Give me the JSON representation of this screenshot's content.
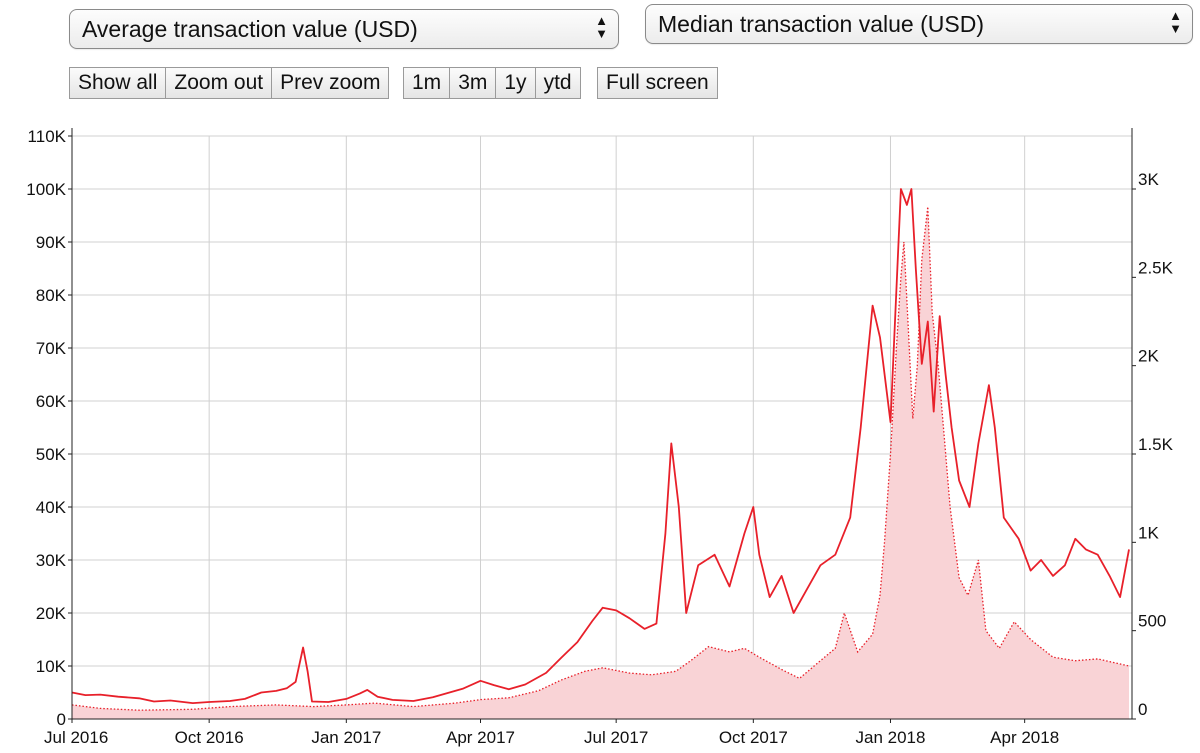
{
  "controls": {
    "left_select": "Average transaction value (USD)",
    "right_select": "Median transaction value (USD)",
    "nav_buttons": [
      "Show all",
      "Zoom out",
      "Prev zoom"
    ],
    "range_buttons": [
      "1m",
      "3m",
      "1y",
      "ytd"
    ],
    "full_screen": "Full screen"
  },
  "chart_data": {
    "type": "line",
    "x_ticks": [
      "Jul 2016",
      "Oct 2016",
      "Jan 2017",
      "Apr 2017",
      "Jul 2017",
      "Oct 2017",
      "Jan 2018",
      "Apr 2018"
    ],
    "y_left_ticks": [
      "0",
      "10K",
      "20K",
      "30K",
      "40K",
      "50K",
      "60K",
      "70K",
      "80K",
      "90K",
      "100K",
      "110K"
    ],
    "y_right_ticks": [
      "0",
      "500",
      "1K",
      "1.5K",
      "2K",
      "2.5K",
      "3K"
    ],
    "ylim_left": [
      0,
      110000
    ],
    "ylim_right": [
      0,
      3000
    ],
    "grid": true,
    "colors": {
      "average": "#e8202a",
      "median_fill": "#f9d3d6",
      "median_line": "#e8202a"
    },
    "series": [
      {
        "axis": "left",
        "style": "solid",
        "points": [
          [
            "2016-07-01",
            5000
          ],
          [
            "2016-07-10",
            4500
          ],
          [
            "2016-07-20",
            4600
          ],
          [
            "2016-08-01",
            4200
          ],
          [
            "2016-08-15",
            3900
          ],
          [
            "2016-08-25",
            3300
          ],
          [
            "2016-09-05",
            3500
          ],
          [
            "2016-09-20",
            3000
          ],
          [
            "2016-10-01",
            3200
          ],
          [
            "2016-10-15",
            3400
          ],
          [
            "2016-10-25",
            3800
          ],
          [
            "2016-11-05",
            5000
          ],
          [
            "2016-11-15",
            5300
          ],
          [
            "2016-11-22",
            5800
          ],
          [
            "2016-11-28",
            7000
          ],
          [
            "2016-12-03",
            13500
          ],
          [
            "2016-12-06",
            9000
          ],
          [
            "2016-12-09",
            3300
          ],
          [
            "2016-12-20",
            3200
          ],
          [
            "2017-01-01",
            3800
          ],
          [
            "2017-01-10",
            4800
          ],
          [
            "2017-01-15",
            5500
          ],
          [
            "2017-01-22",
            4200
          ],
          [
            "2017-02-01",
            3600
          ],
          [
            "2017-02-15",
            3400
          ],
          [
            "2017-02-28",
            4100
          ],
          [
            "2017-03-10",
            4900
          ],
          [
            "2017-03-20",
            5700
          ],
          [
            "2017-04-01",
            7200
          ],
          [
            "2017-04-10",
            6400
          ],
          [
            "2017-04-20",
            5600
          ],
          [
            "2017-05-01",
            6500
          ],
          [
            "2017-05-15",
            8700
          ],
          [
            "2017-05-25",
            11500
          ],
          [
            "2017-06-05",
            14500
          ],
          [
            "2017-06-15",
            18500
          ],
          [
            "2017-06-22",
            21000
          ],
          [
            "2017-07-01",
            20500
          ],
          [
            "2017-07-10",
            19000
          ],
          [
            "2017-07-20",
            17000
          ],
          [
            "2017-07-28",
            18000
          ],
          [
            "2017-08-03",
            35000
          ],
          [
            "2017-08-07",
            52000
          ],
          [
            "2017-08-12",
            40000
          ],
          [
            "2017-08-17",
            20000
          ],
          [
            "2017-08-25",
            29000
          ],
          [
            "2017-09-05",
            31000
          ],
          [
            "2017-09-15",
            25000
          ],
          [
            "2017-09-25",
            35000
          ],
          [
            "2017-10-01",
            40000
          ],
          [
            "2017-10-05",
            31000
          ],
          [
            "2017-10-12",
            23000
          ],
          [
            "2017-10-20",
            27000
          ],
          [
            "2017-10-28",
            20000
          ],
          [
            "2017-11-05",
            24000
          ],
          [
            "2017-11-15",
            29000
          ],
          [
            "2017-11-25",
            31000
          ],
          [
            "2017-12-05",
            38000
          ],
          [
            "2017-12-12",
            55000
          ],
          [
            "2017-12-20",
            78000
          ],
          [
            "2017-12-25",
            72000
          ],
          [
            "2018-01-01",
            56000
          ],
          [
            "2018-01-08",
            100000
          ],
          [
            "2018-01-12",
            97000
          ],
          [
            "2018-01-15",
            100000
          ],
          [
            "2018-01-18",
            85000
          ],
          [
            "2018-01-22",
            67000
          ],
          [
            "2018-01-26",
            75000
          ],
          [
            "2018-01-30",
            58000
          ],
          [
            "2018-02-03",
            76000
          ],
          [
            "2018-02-07",
            65000
          ],
          [
            "2018-02-11",
            55000
          ],
          [
            "2018-02-16",
            45000
          ],
          [
            "2018-02-23",
            40000
          ],
          [
            "2018-03-01",
            52000
          ],
          [
            "2018-03-08",
            63000
          ],
          [
            "2018-03-12",
            55000
          ],
          [
            "2018-03-18",
            38000
          ],
          [
            "2018-03-28",
            34000
          ],
          [
            "2018-04-05",
            28000
          ],
          [
            "2018-04-12",
            30000
          ],
          [
            "2018-04-20",
            27000
          ],
          [
            "2018-04-28",
            29000
          ],
          [
            "2018-05-05",
            34000
          ],
          [
            "2018-05-12",
            32000
          ],
          [
            "2018-05-20",
            31000
          ],
          [
            "2018-05-28",
            27000
          ],
          [
            "2018-06-04",
            23000
          ],
          [
            "2018-06-10",
            32000
          ]
        ]
      },
      {
        "axis": "right",
        "style": "dotted",
        "fill": true,
        "points": [
          [
            "2016-07-01",
            80
          ],
          [
            "2016-07-20",
            60
          ],
          [
            "2016-08-15",
            50
          ],
          [
            "2016-09-20",
            55
          ],
          [
            "2016-10-15",
            70
          ],
          [
            "2016-11-15",
            80
          ],
          [
            "2016-12-10",
            70
          ],
          [
            "2017-01-01",
            80
          ],
          [
            "2017-01-20",
            90
          ],
          [
            "2017-02-15",
            70
          ],
          [
            "2017-03-15",
            90
          ],
          [
            "2017-04-01",
            110
          ],
          [
            "2017-04-20",
            120
          ],
          [
            "2017-05-10",
            160
          ],
          [
            "2017-05-25",
            220
          ],
          [
            "2017-06-10",
            270
          ],
          [
            "2017-06-22",
            290
          ],
          [
            "2017-07-10",
            260
          ],
          [
            "2017-07-25",
            250
          ],
          [
            "2017-08-10",
            270
          ],
          [
            "2017-08-20",
            330
          ],
          [
            "2017-09-01",
            410
          ],
          [
            "2017-09-15",
            380
          ],
          [
            "2017-09-25",
            400
          ],
          [
            "2017-10-05",
            350
          ],
          [
            "2017-10-20",
            280
          ],
          [
            "2017-11-01",
            230
          ],
          [
            "2017-11-15",
            330
          ],
          [
            "2017-11-25",
            400
          ],
          [
            "2017-12-01",
            600
          ],
          [
            "2017-12-10",
            380
          ],
          [
            "2017-12-20",
            480
          ],
          [
            "2017-12-25",
            700
          ],
          [
            "2017-12-28",
            1000
          ],
          [
            "2018-01-01",
            1500
          ],
          [
            "2018-01-05",
            2100
          ],
          [
            "2018-01-08",
            2500
          ],
          [
            "2018-01-10",
            2700
          ],
          [
            "2018-01-13",
            2200
          ],
          [
            "2018-01-16",
            1700
          ],
          [
            "2018-01-19",
            2000
          ],
          [
            "2018-01-22",
            2600
          ],
          [
            "2018-01-26",
            2900
          ],
          [
            "2018-01-29",
            2300
          ],
          [
            "2018-02-02",
            2000
          ],
          [
            "2018-02-06",
            1600
          ],
          [
            "2018-02-10",
            1200
          ],
          [
            "2018-02-16",
            800
          ],
          [
            "2018-02-22",
            700
          ],
          [
            "2018-03-01",
            900
          ],
          [
            "2018-03-06",
            500
          ],
          [
            "2018-03-15",
            400
          ],
          [
            "2018-03-25",
            550
          ],
          [
            "2018-04-05",
            450
          ],
          [
            "2018-04-20",
            350
          ],
          [
            "2018-05-05",
            330
          ],
          [
            "2018-05-20",
            340
          ],
          [
            "2018-06-10",
            300
          ]
        ]
      }
    ]
  }
}
